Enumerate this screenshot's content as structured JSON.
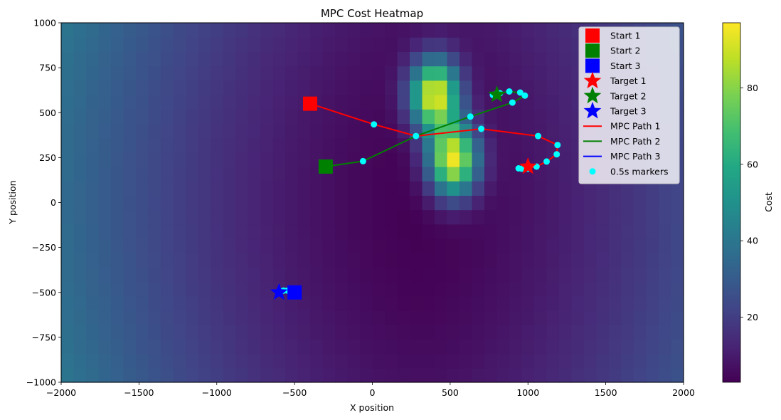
{
  "chart_data": {
    "type": "heatmap",
    "title": "MPC Cost Heatmap",
    "xlabel": "X position",
    "ylabel": "Y position",
    "xlim": [
      -2000,
      2000
    ],
    "ylim": [
      -1000,
      1000
    ],
    "xticks": [
      "-2000",
      "-1500",
      "-1000",
      "-500",
      "0",
      "500",
      "1000",
      "1500",
      "2000"
    ],
    "yticks": [
      "1000",
      "750",
      "500",
      "250",
      "0",
      "-250",
      "-500",
      "-750",
      "-1000"
    ],
    "colorbar": {
      "label": "Cost",
      "range": [
        3,
        97
      ],
      "ticks": [
        "20",
        "40",
        "60",
        "80"
      ],
      "colormap": "viridis"
    },
    "heatmap": {
      "grid_step": 80,
      "cost_model": "edge cost rising toward |x| = 2000 plus two cost peaks",
      "peaks": [
        {
          "x": 400,
          "y": 600,
          "value": 97
        },
        {
          "x": 520,
          "y": 240,
          "value": 97
        }
      ]
    },
    "starts": [
      {
        "name": "Start 1",
        "x": -400,
        "y": 550,
        "color": "#ff0000"
      },
      {
        "name": "Start 2",
        "x": -300,
        "y": 200,
        "color": "#008000"
      },
      {
        "name": "Start 3",
        "x": -500,
        "y": -500,
        "color": "#0000ff"
      }
    ],
    "targets": [
      {
        "name": "Target 1",
        "x": 1000,
        "y": 200,
        "color": "#ff0000"
      },
      {
        "name": "Target 2",
        "x": 800,
        "y": 600,
        "color": "#008000"
      },
      {
        "name": "Target 3",
        "x": -600,
        "y": -500,
        "color": "#0000ff"
      }
    ],
    "series": [
      {
        "name": "MPC Path 1",
        "color": "#ff0000",
        "points": [
          [
            -400,
            550
          ],
          [
            10,
            435
          ],
          [
            280,
            370
          ],
          [
            700,
            410
          ],
          [
            1065,
            370
          ],
          [
            1190,
            320
          ],
          [
            1185,
            268
          ],
          [
            1120,
            228
          ],
          [
            1055,
            200
          ],
          [
            1000,
            190
          ],
          [
            950,
            188
          ]
        ]
      },
      {
        "name": "MPC Path 2",
        "color": "#008000",
        "points": [
          [
            -300,
            200
          ],
          [
            -60,
            230
          ],
          [
            280,
            370
          ],
          [
            630,
            478
          ],
          [
            900,
            556
          ],
          [
            980,
            595
          ],
          [
            950,
            610
          ],
          [
            880,
            618
          ],
          [
            820,
            608
          ],
          [
            790,
            600
          ]
        ]
      },
      {
        "name": "MPC Path 3",
        "color": "#0000ff",
        "points": [
          [
            -500,
            -500
          ],
          [
            -520,
            -495
          ],
          [
            -560,
            -492
          ],
          [
            -590,
            -493
          ],
          [
            -600,
            -500
          ]
        ]
      }
    ],
    "markers_name": "0.5s markers",
    "markers_color": "#00ffff",
    "markers": [
      [
        10,
        435
      ],
      [
        280,
        370
      ],
      [
        630,
        478
      ],
      [
        700,
        410
      ],
      [
        1065,
        370
      ],
      [
        1190,
        320
      ],
      [
        1185,
        268
      ],
      [
        1120,
        228
      ],
      [
        1055,
        200
      ],
      [
        1000,
        188
      ],
      [
        980,
        190
      ],
      [
        960,
        188
      ],
      [
        940,
        190
      ],
      [
        -60,
        230
      ],
      [
        900,
        556
      ],
      [
        980,
        595
      ],
      [
        950,
        612
      ],
      [
        880,
        618
      ],
      [
        820,
        608
      ],
      [
        790,
        602
      ],
      [
        775,
        598
      ],
      [
        -520,
        -493
      ],
      [
        -545,
        -490
      ],
      [
        -570,
        -490
      ],
      [
        -590,
        -493
      ],
      [
        -600,
        -500
      ]
    ],
    "legend": {
      "placement": "top-right",
      "entries": [
        {
          "label": "Start 1",
          "kind": "square",
          "color": "#ff0000"
        },
        {
          "label": "Start 2",
          "kind": "square",
          "color": "#008000"
        },
        {
          "label": "Start 3",
          "kind": "square",
          "color": "#0000ff"
        },
        {
          "label": "Target 1",
          "kind": "star",
          "color": "#ff0000"
        },
        {
          "label": "Target 2",
          "kind": "star",
          "color": "#008000"
        },
        {
          "label": "Target 3",
          "kind": "star",
          "color": "#0000ff"
        },
        {
          "label": "MPC Path 1",
          "kind": "line",
          "color": "#ff0000"
        },
        {
          "label": "MPC Path 2",
          "kind": "line",
          "color": "#008000"
        },
        {
          "label": "MPC Path 3",
          "kind": "line",
          "color": "#0000ff"
        },
        {
          "label": "0.5s markers",
          "kind": "dot",
          "color": "#00ffff"
        }
      ]
    }
  }
}
